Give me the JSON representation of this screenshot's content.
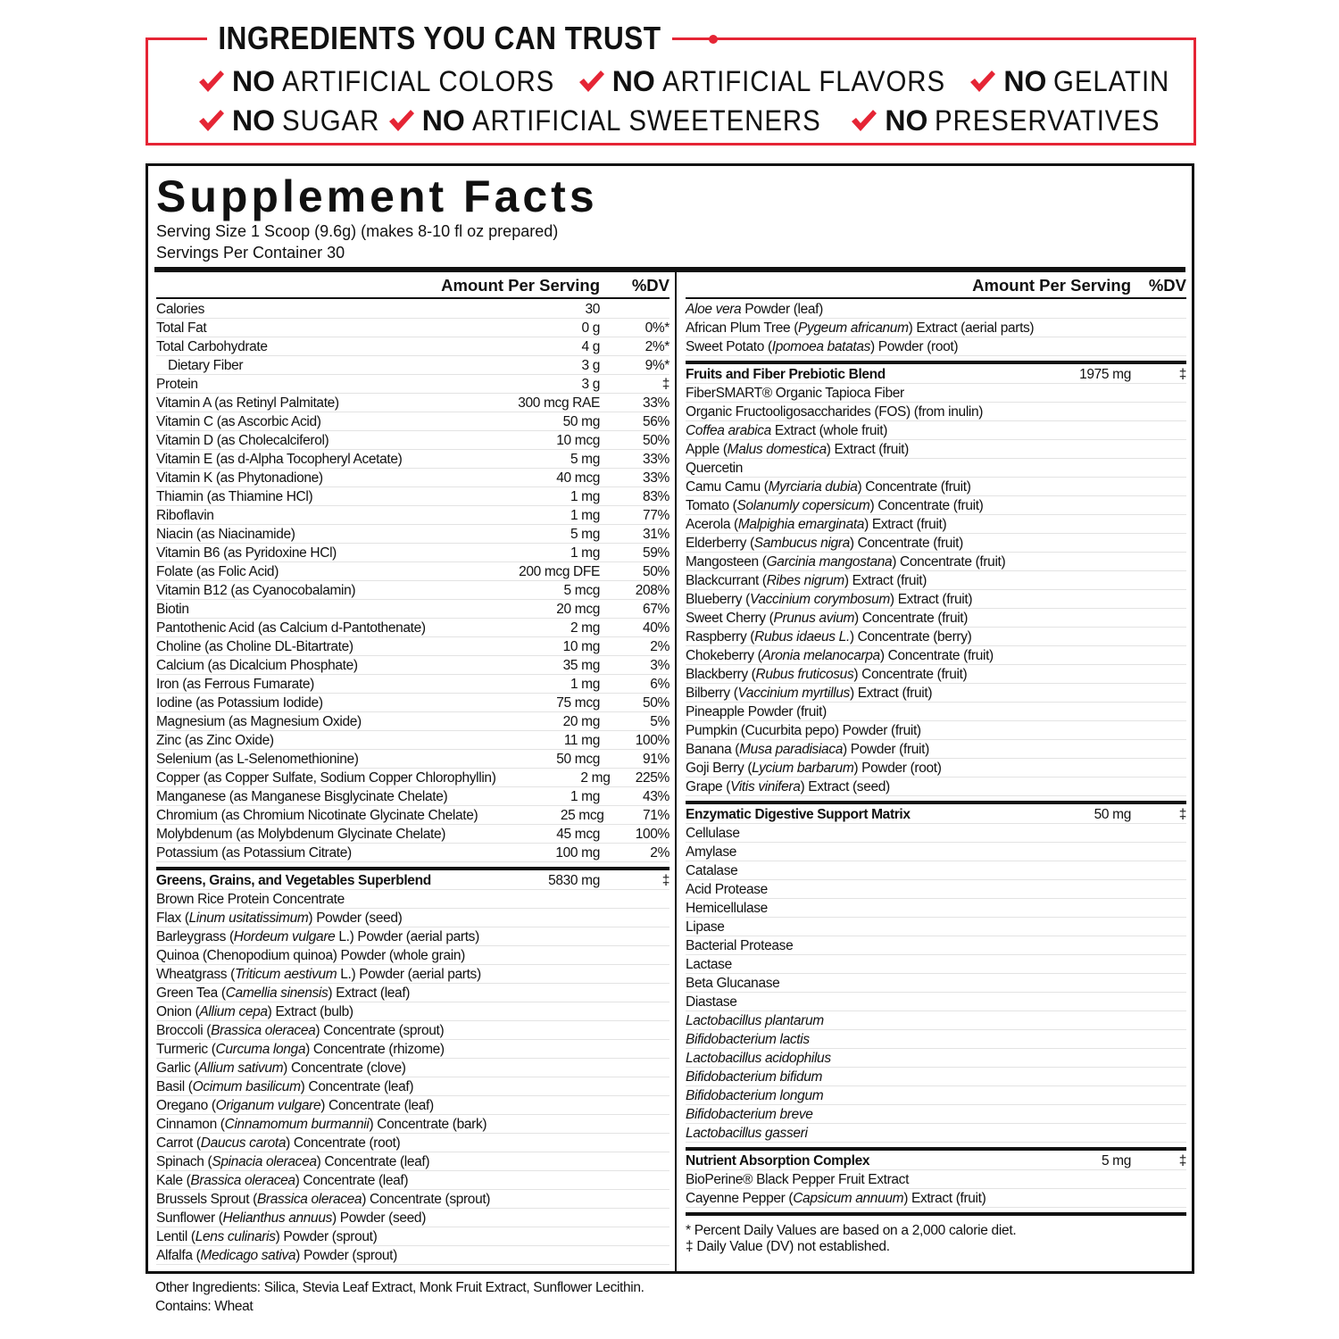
{
  "banner": {
    "title": "INGREDIENTS YOU CAN TRUST",
    "claims": [
      [
        {
          "lead": "NO",
          "text": "ARTIFICIAL COLORS"
        },
        {
          "lead": "NO",
          "text": "ARTIFICIAL FLAVORS"
        },
        {
          "lead": "NO",
          "text": "GELATIN"
        }
      ],
      [
        {
          "lead": "NO",
          "text": "SUGAR"
        },
        {
          "lead": "NO",
          "text": "ARTIFICIAL SWEETENERS"
        },
        {
          "lead": "NO",
          "text": "PRESERVATIVES"
        }
      ]
    ]
  },
  "facts": {
    "title": "Supplement Facts",
    "serving_size": "Serving Size 1 Scoop (9.6g) (makes 8-10 fl oz prepared)",
    "servings": "Servings Per Container 30",
    "left": {
      "header": {
        "amount": "Amount Per Serving",
        "dv": "%DV"
      },
      "nutrients": [
        {
          "name": "Calories",
          "amount": "30"
        },
        {
          "name": "Total Fat",
          "amount": "0 g",
          "dv": "0%*"
        },
        {
          "name": "Total Carbohydrate",
          "amount": "4 g",
          "dv": "2%*"
        },
        {
          "name": "Dietary Fiber",
          "amount": "3 g",
          "dv": "9%*",
          "indent": true
        },
        {
          "name": "Protein",
          "amount": "3 g",
          "dv": "‡"
        },
        {
          "name": "Vitamin A (as Retinyl Palmitate)",
          "amount": "300 mcg RAE",
          "dv": "33%"
        },
        {
          "name": "Vitamin C (as Ascorbic Acid)",
          "amount": "50 mg",
          "dv": "56%"
        },
        {
          "name": "Vitamin D (as Cholecalciferol)",
          "amount": "10 mcg",
          "dv": "50%"
        },
        {
          "name": "Vitamin E (as d-Alpha Tocopheryl Acetate)",
          "amount": "5 mg",
          "dv": "33%"
        },
        {
          "name": "Vitamin K (as Phytonadione)",
          "amount": "40 mcg",
          "dv": "33%"
        },
        {
          "name": "Thiamin (as Thiamine HCl)",
          "amount": "1 mg",
          "dv": "83%"
        },
        {
          "name": "Riboflavin",
          "amount": "1 mg",
          "dv": "77%"
        },
        {
          "name": "Niacin (as Niacinamide)",
          "amount": "5 mg",
          "dv": "31%"
        },
        {
          "name": "Vitamin B6 (as Pyridoxine HCl)",
          "amount": "1 mg",
          "dv": "59%"
        },
        {
          "name": "Folate (as Folic Acid)",
          "amount": "200 mcg DFE",
          "dv": "50%"
        },
        {
          "name": "Vitamin B12 (as Cyanocobalamin)",
          "amount": "5 mcg",
          "dv": "208%"
        },
        {
          "name": "Biotin",
          "amount": "20 mcg",
          "dv": "67%"
        },
        {
          "name": "Pantothenic Acid (as Calcium d-Pantothenate)",
          "amount": "2 mg",
          "dv": "40%"
        },
        {
          "name": "Choline (as Choline DL-Bitartrate)",
          "amount": "10 mg",
          "dv": "2%"
        },
        {
          "name": "Calcium (as Dicalcium Phosphate)",
          "amount": "35 mg",
          "dv": "3%"
        },
        {
          "name": "Iron (as Ferrous Fumarate)",
          "amount": "1 mg",
          "dv": "6%"
        },
        {
          "name": "Iodine (as Potassium Iodide)",
          "amount": "75 mcg",
          "dv": "50%"
        },
        {
          "name": "Magnesium (as Magnesium Oxide)",
          "amount": "20 mg",
          "dv": "5%"
        },
        {
          "name": "Zinc (as Zinc Oxide)",
          "amount": "11 mg",
          "dv": "100%"
        },
        {
          "name": "Selenium (as L-Selenomethionine)",
          "amount": "50 mcg",
          "dv": "91%"
        },
        {
          "name": "Copper (as Copper Sulfate, Sodium Copper Chlorophyllin)",
          "amount": "2 mg",
          "dv": "225%"
        },
        {
          "name": "Manganese (as Manganese Bisglycinate Chelate)",
          "amount": "1 mg",
          "dv": "43%"
        },
        {
          "name": "Chromium (as Chromium Nicotinate Glycinate Chelate)",
          "amount": "25 mcg",
          "dv": "71%"
        },
        {
          "name": "Molybdenum (as Molybdenum Glycinate Chelate)",
          "amount": "45 mcg",
          "dv": "100%"
        },
        {
          "name": "Potassium (as Potassium Citrate)",
          "amount": "100 mg",
          "dv": "2%"
        }
      ],
      "blend": {
        "name": "Greens, Grains, and Vegetables Superblend",
        "amount": "5830 mg",
        "dv": "‡",
        "items": [
          "Brown Rice Protein Concentrate",
          [
            "Flax (",
            {
              "italic": "Linum usitatissimum"
            },
            ") Powder (seed)"
          ],
          [
            "Barleygrass (",
            {
              "italic": "Hordeum vulgare"
            },
            " L.) Powder (aerial parts)"
          ],
          "Quinoa (Chenopodium quinoa) Powder (whole grain)",
          [
            "Wheatgrass (",
            {
              "italic": "Triticum aestivum"
            },
            " L.) Powder (aerial parts)"
          ],
          [
            "Green Tea (",
            {
              "italic": "Camellia sinensis"
            },
            ") Extract (leaf)"
          ],
          [
            "Onion (",
            {
              "italic": "Allium cepa"
            },
            ") Extract (bulb)"
          ],
          [
            "Broccoli (",
            {
              "italic": "Brassica oleracea"
            },
            ") Concentrate (sprout)"
          ],
          [
            "Turmeric (",
            {
              "italic": "Curcuma longa"
            },
            ") Concentrate (rhizome)"
          ],
          [
            "Garlic (",
            {
              "italic": "Allium sativum"
            },
            ") Concentrate (clove)"
          ],
          [
            "Basil (",
            {
              "italic": "Ocimum basilicum"
            },
            ") Concentrate (leaf)"
          ],
          [
            "Oregano (",
            {
              "italic": "Origanum vulgare"
            },
            ") Concentrate (leaf)"
          ],
          [
            "Cinnamon (",
            {
              "italic": "Cinnamomum burmannii"
            },
            ") Concentrate (bark)"
          ],
          [
            "Carrot (",
            {
              "italic": "Daucus carota"
            },
            ") Concentrate (root)"
          ],
          [
            "Spinach (",
            {
              "italic": "Spinacia oleracea"
            },
            ") Concentrate (leaf)"
          ],
          [
            "Kale (",
            {
              "italic": "Brassica oleracea"
            },
            ") Concentrate (leaf)"
          ],
          [
            "Brussels Sprout (",
            {
              "italic": "Brassica oleracea"
            },
            ") Concentrate (sprout)"
          ],
          [
            "Sunflower (",
            {
              "italic": "Helianthus annuus"
            },
            ") Powder (seed)"
          ],
          [
            "Lentil (",
            {
              "italic": "Lens culinaris"
            },
            ") Powder (sprout)"
          ],
          [
            "Alfalfa (",
            {
              "italic": "Medicago sativa"
            },
            ") Powder (sprout)"
          ]
        ]
      }
    },
    "right": {
      "header": {
        "amount": "Amount Per Serving",
        "dv": "%DV"
      },
      "continued": [
        [
          {
            "italic": "Aloe vera"
          },
          " Powder (leaf)"
        ],
        [
          "African Plum Tree (",
          {
            "italic": "Pygeum africanum"
          },
          ") Extract (aerial parts)"
        ],
        [
          "Sweet Potato (",
          {
            "italic": "Ipomoea batatas"
          },
          ") Powder (root)"
        ]
      ],
      "blends": [
        {
          "name": "Fruits and Fiber Prebiotic Blend",
          "amount": "1975 mg",
          "dv": "‡",
          "items": [
            "FiberSMART® Organic Tapioca Fiber",
            "Organic Fructooligosaccharides (FOS) (from inulin)",
            [
              {
                "italic": "Coffea arabica"
              },
              " Extract (whole fruit)"
            ],
            [
              "Apple (",
              {
                "italic": "Malus domestica"
              },
              ") Extract (fruit)"
            ],
            "Quercetin",
            [
              "Camu Camu (",
              {
                "italic": "Myrciaria dubia"
              },
              ") Concentrate (fruit)"
            ],
            [
              "Tomato (",
              {
                "italic": "Solanumly copersicum"
              },
              ") Concentrate (fruit)"
            ],
            [
              "Acerola (",
              {
                "italic": "Malpighia emarginata"
              },
              ") Extract (fruit)"
            ],
            [
              "Elderberry (",
              {
                "italic": "Sambucus nigra"
              },
              ") Concentrate (fruit)"
            ],
            [
              "Mangosteen (",
              {
                "italic": "Garcinia mangostana"
              },
              ") Concentrate (fruit)"
            ],
            [
              "Blackcurrant (",
              {
                "italic": "Ribes nigrum"
              },
              ") Extract (fruit)"
            ],
            [
              "Blueberry (",
              {
                "italic": "Vaccinium corymbosum"
              },
              ") Extract (fruit)"
            ],
            [
              "Sweet Cherry (",
              {
                "italic": "Prunus avium"
              },
              ") Concentrate (fruit)"
            ],
            [
              "Raspberry (",
              {
                "italic": "Rubus idaeus L."
              },
              ") Concentrate (berry)"
            ],
            [
              "Chokeberry (",
              {
                "italic": "Aronia melanocarpa"
              },
              ") Concentrate (fruit)"
            ],
            [
              "Blackberry (",
              {
                "italic": "Rubus fruticosus"
              },
              ") Concentrate (fruit)"
            ],
            [
              "Bilberry (",
              {
                "italic": "Vaccinium myrtillus"
              },
              ") Extract (fruit)"
            ],
            "Pineapple Powder (fruit)",
            "Pumpkin (Cucurbita pepo) Powder (fruit)",
            [
              "Banana (",
              {
                "italic": "Musa paradisiaca"
              },
              ") Powder (fruit)"
            ],
            [
              "Goji Berry (",
              {
                "italic": "Lycium barbarum"
              },
              ") Powder (root)"
            ],
            [
              "Grape (",
              {
                "italic": "Vitis vinifera"
              },
              ") Extract (seed)"
            ]
          ]
        },
        {
          "name": "Enzymatic Digestive Support Matrix",
          "amount": "50 mg",
          "dv": "‡",
          "items": [
            "Cellulase",
            "Amylase",
            "Catalase",
            "Acid Protease",
            "Hemicellulase",
            "Lipase",
            "Bacterial Protease",
            "Lactase",
            "Beta Glucanase",
            "Diastase",
            [
              {
                "italic": "Lactobacillus plantarum"
              }
            ],
            [
              {
                "italic": "Bifidobacterium lactis"
              }
            ],
            [
              {
                "italic": "Lactobacillus acidophilus"
              }
            ],
            [
              {
                "italic": "Bifidobacterium bifidum"
              }
            ],
            [
              {
                "italic": "Bifidobacterium longum"
              }
            ],
            [
              {
                "italic": "Bifidobacterium breve"
              }
            ],
            [
              {
                "italic": "Lactobacillus gasseri"
              }
            ]
          ]
        },
        {
          "name": "Nutrient Absorption Complex",
          "amount": "5 mg",
          "dv": "‡",
          "items": [
            "BioPerine® Black Pepper Fruit Extract",
            [
              "Cayenne Pepper (",
              {
                "italic": "Capsicum annuum"
              },
              ") Extract (fruit)"
            ]
          ]
        }
      ],
      "footnotes": [
        "* Percent Daily Values are based on a 2,000 calorie diet.",
        "‡ Daily Value (DV) not established."
      ]
    }
  },
  "footer": {
    "other_ingredients": "Other Ingredients: Silica, Stevia Leaf Extract, Monk Fruit Extract, Sunflower Lecithin.",
    "contains": "Contains: Wheat"
  }
}
